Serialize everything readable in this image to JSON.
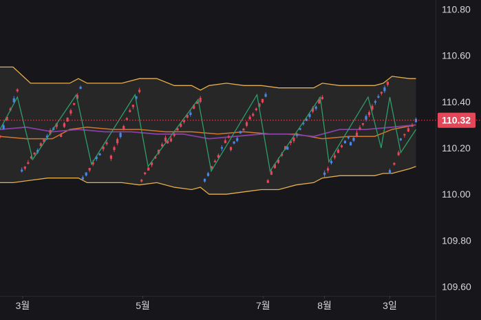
{
  "chart_data": {
    "type": "candlestick",
    "y_axis": {
      "ticks": [
        "110.80",
        "110.60",
        "110.40",
        "110.20",
        "110.00",
        "109.80",
        "109.60"
      ],
      "tick_values": [
        110.8,
        110.6,
        110.4,
        110.2,
        110.0,
        109.8,
        109.6
      ],
      "ylim": [
        109.56,
        110.84
      ],
      "side": "right"
    },
    "x_axis": {
      "labels": [
        {
          "text": "3월",
          "t": 0.052
        },
        {
          "text": "5월",
          "t": 0.328
        },
        {
          "text": "7월",
          "t": 0.604
        },
        {
          "text": "8월",
          "t": 0.745
        },
        {
          "text": "3일",
          "t": 0.895
        }
      ]
    },
    "last_price": {
      "value": 110.32,
      "label": "110.32"
    },
    "grid": false,
    "colors": {
      "background": "#17161b",
      "up": "#e2485a",
      "down": "#4a86e8",
      "zigzag": "#2e9e6a",
      "band": "#e8b04a",
      "band_fill": "#2c2a2a",
      "ma_purple": "#8a3fa8",
      "ma_orange": "#d3772b",
      "price_tag": "#e2485a",
      "axis_text": "#d6d6d9"
    },
    "series": [
      {
        "kind": "band_upper",
        "x": [
          0.0,
          0.03,
          0.07,
          0.11,
          0.16,
          0.18,
          0.2,
          0.24,
          0.28,
          0.32,
          0.36,
          0.4,
          0.44,
          0.46,
          0.48,
          0.52,
          0.56,
          0.6,
          0.64,
          0.68,
          0.72,
          0.74,
          0.78,
          0.82,
          0.86,
          0.88,
          0.9,
          0.94,
          0.955
        ],
        "y": [
          110.55,
          110.55,
          110.48,
          110.48,
          110.48,
          110.5,
          110.48,
          110.48,
          110.48,
          110.5,
          110.5,
          110.47,
          110.47,
          110.45,
          110.47,
          110.48,
          110.47,
          110.47,
          110.46,
          110.46,
          110.46,
          110.48,
          110.47,
          110.47,
          110.47,
          110.48,
          110.51,
          110.5,
          110.5
        ]
      },
      {
        "kind": "band_lower",
        "x": [
          0.0,
          0.03,
          0.07,
          0.11,
          0.16,
          0.18,
          0.2,
          0.24,
          0.28,
          0.32,
          0.36,
          0.4,
          0.44,
          0.46,
          0.48,
          0.52,
          0.56,
          0.6,
          0.64,
          0.68,
          0.72,
          0.74,
          0.78,
          0.82,
          0.86,
          0.88,
          0.9,
          0.94,
          0.955
        ],
        "y": [
          110.05,
          110.05,
          110.06,
          110.07,
          110.07,
          110.07,
          110.05,
          110.05,
          110.05,
          110.04,
          110.05,
          110.03,
          110.02,
          110.03,
          110.0,
          110.0,
          110.01,
          110.02,
          110.02,
          110.04,
          110.05,
          110.07,
          110.08,
          110.08,
          110.08,
          110.09,
          110.09,
          110.11,
          110.12
        ]
      },
      {
        "kind": "ma_purple",
        "x": [
          0.0,
          0.06,
          0.12,
          0.18,
          0.24,
          0.3,
          0.36,
          0.42,
          0.48,
          0.54,
          0.6,
          0.66,
          0.72,
          0.78,
          0.84,
          0.9,
          0.955
        ],
        "y": [
          110.28,
          110.29,
          110.27,
          110.28,
          110.27,
          110.27,
          110.26,
          110.26,
          110.24,
          110.25,
          110.26,
          110.26,
          110.25,
          110.28,
          110.28,
          110.29,
          110.3
        ]
      },
      {
        "kind": "ma_orange",
        "x": [
          0.0,
          0.06,
          0.12,
          0.16,
          0.2,
          0.26,
          0.32,
          0.38,
          0.44,
          0.5,
          0.56,
          0.62,
          0.68,
          0.74,
          0.8,
          0.86,
          0.9,
          0.955
        ],
        "y": [
          110.25,
          110.24,
          110.24,
          110.28,
          110.29,
          110.28,
          110.28,
          110.27,
          110.27,
          110.26,
          110.27,
          110.26,
          110.26,
          110.24,
          110.25,
          110.25,
          110.28,
          110.3
        ]
      },
      {
        "kind": "zigzag",
        "x": [
          0.0,
          0.04,
          0.075,
          0.175,
          0.21,
          0.31,
          0.34,
          0.455,
          0.485,
          0.59,
          0.62,
          0.735,
          0.755,
          0.845,
          0.875,
          0.895,
          0.92,
          0.955
        ],
        "y": [
          110.28,
          110.42,
          110.15,
          110.43,
          110.13,
          110.43,
          110.12,
          110.41,
          110.1,
          110.43,
          110.1,
          110.42,
          110.14,
          110.42,
          110.2,
          110.42,
          110.18,
          110.28
        ]
      }
    ],
    "legs": [
      {
        "t0": 0.0,
        "t1": 0.04,
        "p0": 110.25,
        "p1": 110.45
      },
      {
        "t0": 0.05,
        "t1": 0.13,
        "p0": 110.1,
        "p1": 110.3
      },
      {
        "t0": 0.14,
        "t1": 0.185,
        "p0": 110.26,
        "p1": 110.46
      },
      {
        "t0": 0.19,
        "t1": 0.245,
        "p0": 110.07,
        "p1": 110.22
      },
      {
        "t0": 0.255,
        "t1": 0.32,
        "p0": 110.16,
        "p1": 110.45
      },
      {
        "t0": 0.325,
        "t1": 0.38,
        "p0": 110.06,
        "p1": 110.24
      },
      {
        "t0": 0.385,
        "t1": 0.46,
        "p0": 110.22,
        "p1": 110.41
      },
      {
        "t0": 0.47,
        "t1": 0.525,
        "p0": 110.06,
        "p1": 110.25
      },
      {
        "t0": 0.53,
        "t1": 0.61,
        "p0": 110.2,
        "p1": 110.43
      },
      {
        "t0": 0.615,
        "t1": 0.655,
        "p0": 110.06,
        "p1": 110.2
      },
      {
        "t0": 0.66,
        "t1": 0.74,
        "p0": 110.2,
        "p1": 110.42
      },
      {
        "t0": 0.745,
        "t1": 0.8,
        "p0": 110.09,
        "p1": 110.25
      },
      {
        "t0": 0.805,
        "t1": 0.89,
        "p0": 110.22,
        "p1": 110.48
      },
      {
        "t0": 0.895,
        "t1": 0.915,
        "p0": 110.1,
        "p1": 110.17
      },
      {
        "t0": 0.92,
        "t1": 0.955,
        "p0": 110.24,
        "p1": 110.32
      }
    ]
  }
}
